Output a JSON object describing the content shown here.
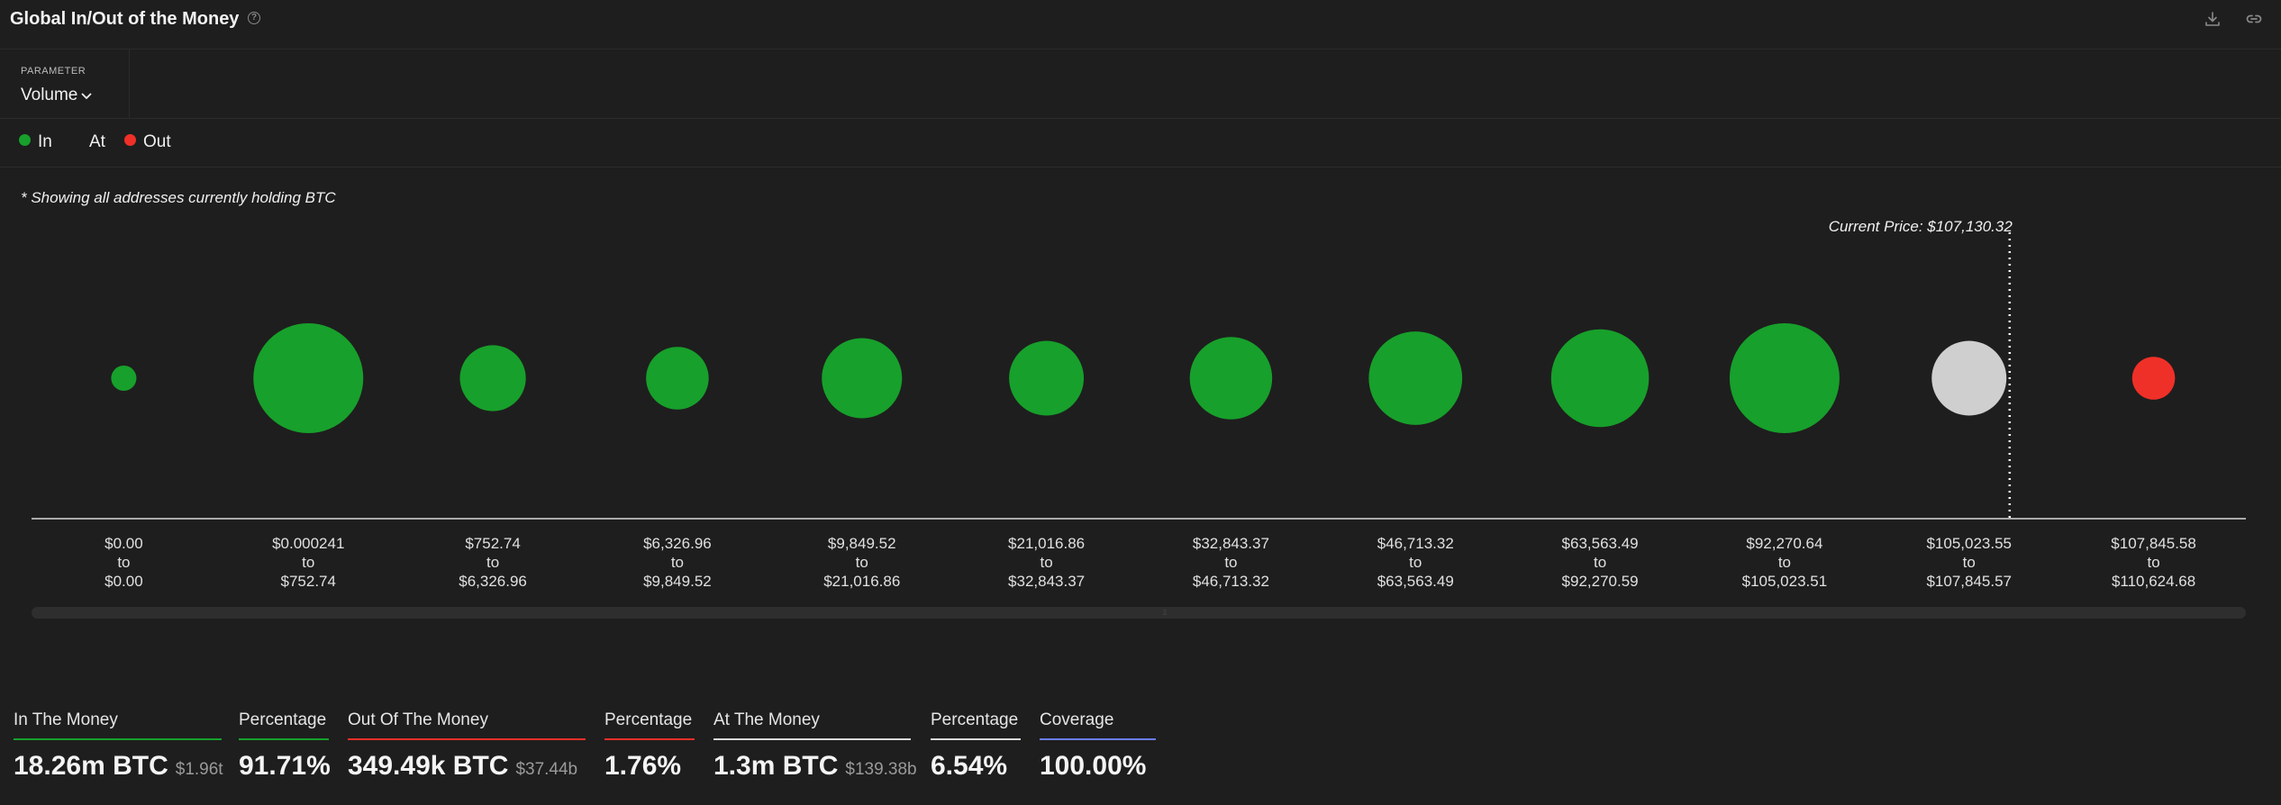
{
  "header": {
    "title": "Global In/Out of the Money",
    "help_icon": "question-circle-icon",
    "download_icon": "download-icon",
    "link_icon": "link-icon"
  },
  "parameter": {
    "label": "PARAMETER",
    "selected": "Volume"
  },
  "legend": {
    "in_label": "In",
    "at_label": "At",
    "out_label": "Out"
  },
  "colors": {
    "in": "#17a02b",
    "at": "#cfcfcf",
    "out": "#ef3028",
    "coverage": "#6b7cf5"
  },
  "note": "* Showing all addresses currently holding BTC",
  "chart_data": {
    "type": "bubble",
    "current_price_label": "Current Price: $107,130.32",
    "current_price": 107130.32,
    "buckets": [
      {
        "from": "$0.00",
        "to": "$0.00",
        "status": "in",
        "size": 0.23
      },
      {
        "from": "$0.000241",
        "to": "$752.74",
        "status": "in",
        "size": 1.0
      },
      {
        "from": "$752.74",
        "to": "$6,326.96",
        "status": "in",
        "size": 0.6
      },
      {
        "from": "$6,326.96",
        "to": "$9,849.52",
        "status": "in",
        "size": 0.57
      },
      {
        "from": "$9,849.52",
        "to": "$21,016.86",
        "status": "in",
        "size": 0.73
      },
      {
        "from": "$21,016.86",
        "to": "$32,843.37",
        "status": "in",
        "size": 0.68
      },
      {
        "from": "$32,843.37",
        "to": "$46,713.32",
        "status": "in",
        "size": 0.75
      },
      {
        "from": "$46,713.32",
        "to": "$63,563.49",
        "status": "in",
        "size": 0.85
      },
      {
        "from": "$63,563.49",
        "to": "$92,270.59",
        "status": "in",
        "size": 0.89
      },
      {
        "from": "$92,270.64",
        "to": "$105,023.51",
        "status": "in",
        "size": 1.0
      },
      {
        "from": "$105,023.55",
        "to": "$107,845.57",
        "status": "at",
        "size": 0.68
      },
      {
        "from": "$107,845.58",
        "to": "$110,624.68",
        "status": "out",
        "size": 0.39
      }
    ],
    "range_connector": "to",
    "current_price_bucket_index": 10,
    "current_price_bucket_fraction": 0.72
  },
  "stats": [
    {
      "label": "In The Money",
      "value": "18.26m BTC",
      "sub": "$1.96t",
      "accent": "#17a02b"
    },
    {
      "label": "Percentage",
      "value": "91.71%",
      "sub": "",
      "accent": "#17a02b"
    },
    {
      "label": "Out Of The Money",
      "value": "349.49k BTC",
      "sub": "$37.44b",
      "accent": "#ef3028"
    },
    {
      "label": "Percentage",
      "value": "1.76%",
      "sub": "",
      "accent": "#ef3028"
    },
    {
      "label": "At The Money",
      "value": "1.3m BTC",
      "sub": "$139.38b",
      "accent": "#d9d9d9"
    },
    {
      "label": "Percentage",
      "value": "6.54%",
      "sub": "",
      "accent": "#d9d9d9"
    },
    {
      "label": "Coverage",
      "value": "100.00%",
      "sub": "",
      "accent": "#6b7cf5"
    }
  ]
}
